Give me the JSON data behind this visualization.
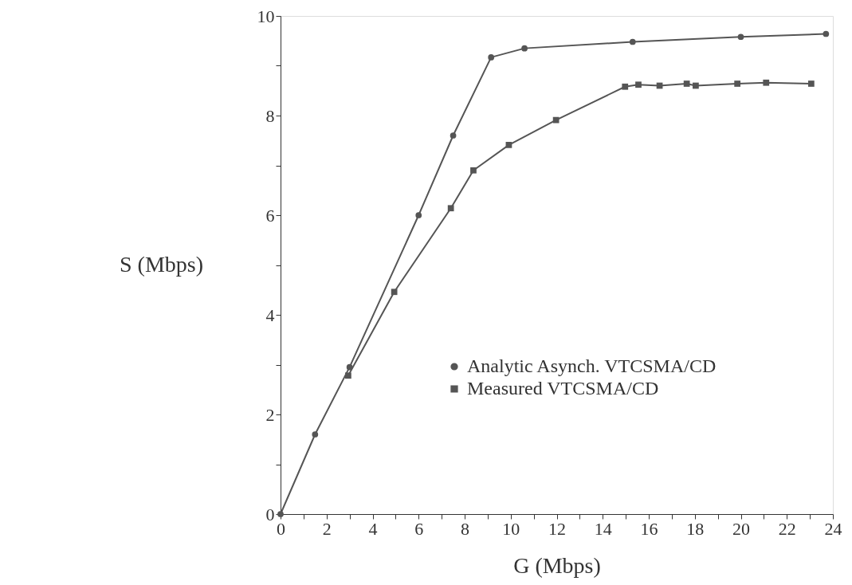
{
  "chart_data": {
    "type": "line",
    "xlabel": "G (Mbps)",
    "ylabel": "S (Mbps)",
    "xlim": [
      0,
      24
    ],
    "ylim": [
      0,
      10
    ],
    "xticks": [
      0,
      {
        "value": 1,
        "label": null
      },
      2,
      {
        "value": 3,
        "label": null
      },
      4,
      {
        "value": 5,
        "label": null
      },
      6,
      {
        "value": 7,
        "label": null
      },
      8,
      {
        "value": 9,
        "label": null
      },
      10,
      {
        "value": 11,
        "label": null
      },
      12,
      {
        "value": 13,
        "label": null
      },
      14,
      {
        "value": 15,
        "label": null
      },
      16,
      {
        "value": 17,
        "label": null
      },
      18,
      {
        "value": 19,
        "label": null
      },
      20,
      {
        "value": 21,
        "label": null
      },
      22,
      {
        "value": 23,
        "label": null
      },
      24
    ],
    "yticks": [
      0,
      {
        "value": 1,
        "label": null
      },
      2,
      {
        "value": 3,
        "label": null
      },
      4,
      {
        "value": 5,
        "label": null
      },
      6,
      {
        "value": 7,
        "label": null
      },
      8,
      {
        "value": 9,
        "label": null
      },
      10
    ],
    "grid": false,
    "legend": "bottom right",
    "line_style": "solid",
    "series": [
      {
        "name": "Analytic Asynch. VTCSMA/CD",
        "color": "#555555",
        "marker": "circle",
        "x": [
          0,
          1.5,
          3,
          6,
          7.5,
          9.15,
          10.6,
          15.3,
          20,
          23.7
        ],
        "values": [
          0,
          1.6,
          2.95,
          6.0,
          7.6,
          9.17,
          9.35,
          9.48,
          9.58,
          9.64
        ]
      },
      {
        "name": "Measured VTCSMA/CD",
        "color": "#555555",
        "marker": "square",
        "x": [
          2.94,
          4.94,
          7.4,
          8.38,
          9.92,
          11.97,
          14.97,
          15.55,
          16.47,
          17.65,
          18.04,
          19.85,
          21.1,
          23.06
        ],
        "values": [
          2.78,
          4.46,
          6.14,
          6.9,
          7.41,
          7.91,
          8.58,
          8.62,
          8.6,
          8.64,
          8.6,
          8.64,
          8.66,
          8.64
        ]
      }
    ]
  }
}
